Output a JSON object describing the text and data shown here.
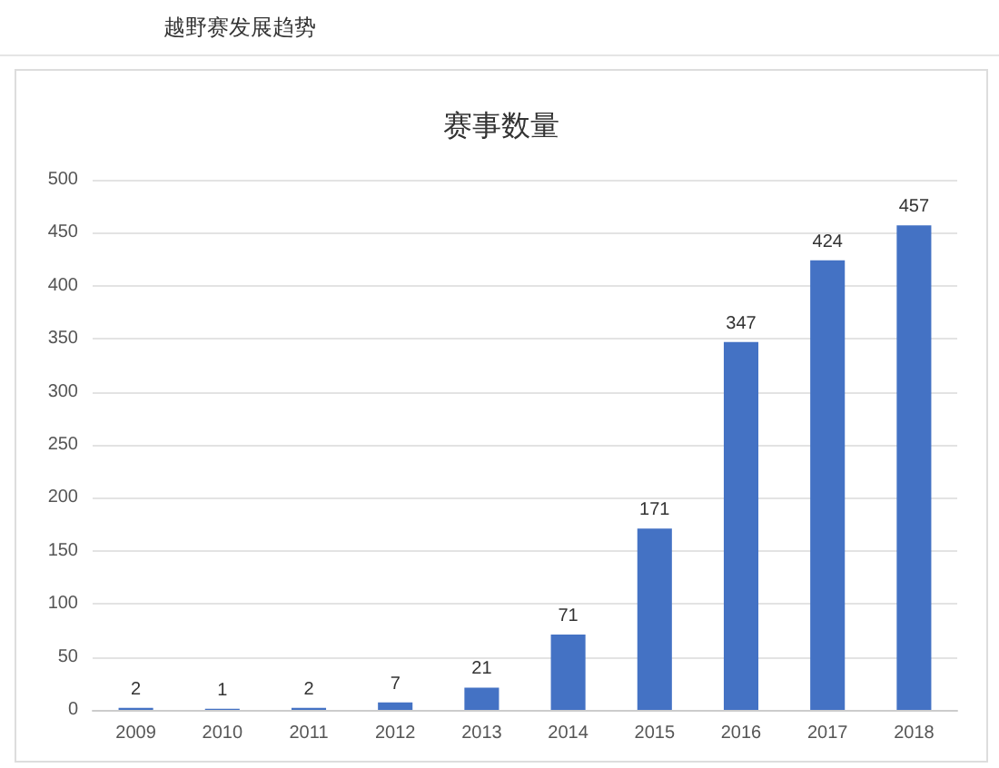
{
  "chart_data": {
    "type": "bar",
    "title": "赛事数量",
    "subtitle": "越野赛发展趋势",
    "categories": [
      "2009",
      "2010",
      "2011",
      "2012",
      "2013",
      "2014",
      "2015",
      "2016",
      "2017",
      "2018"
    ],
    "values": [
      2,
      1,
      2,
      7,
      21,
      71,
      171,
      347,
      424,
      457
    ],
    "color": "#4472c4",
    "ylim": [
      0,
      500
    ],
    "yticks": [
      0,
      50,
      100,
      150,
      200,
      250,
      300,
      350,
      400,
      450,
      500
    ],
    "grid": "y",
    "data_labels": true
  }
}
